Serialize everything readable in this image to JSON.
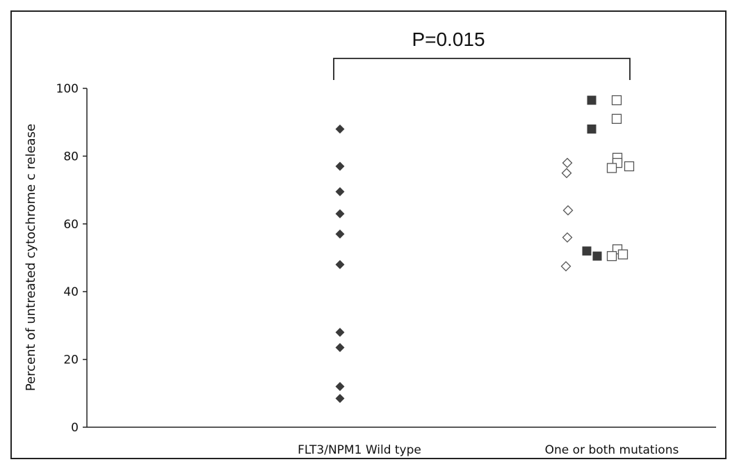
{
  "chart_data": {
    "type": "scatter",
    "title": "",
    "ylabel": "Percent of untreated cytochrome c release",
    "xlabel": "",
    "categories": [
      "FLT3/NPM1 Wild type",
      "One or both mutations"
    ],
    "ylim": [
      0,
      100
    ],
    "yticks": [
      0,
      20,
      40,
      60,
      80,
      100
    ],
    "grid": false,
    "annotation": {
      "text": "P=0.015",
      "between": [
        "FLT3/NPM1 Wild type",
        "One or both mutations"
      ]
    },
    "series": [
      {
        "marker": "filled-diamond",
        "category": "FLT3/NPM1 Wild type",
        "values": [
          88,
          77,
          69.5,
          63,
          57,
          48,
          28,
          23.5,
          12,
          8.5
        ]
      },
      {
        "marker": "open-diamond",
        "category": "One or both mutations",
        "values": [
          78,
          75,
          64,
          56,
          47.5
        ]
      },
      {
        "marker": "filled-square",
        "category": "One or both mutations",
        "values": [
          96.5,
          88,
          52,
          50.5
        ]
      },
      {
        "marker": "open-square",
        "category": "One or both mutations",
        "values": [
          96.5,
          91,
          79.5,
          78,
          76.5,
          77,
          52.5,
          51,
          50.5
        ]
      }
    ]
  },
  "colors": {
    "filled_marker": "#3a3a3a",
    "open_marker_stroke": "#555555",
    "axis": "#222222"
  }
}
